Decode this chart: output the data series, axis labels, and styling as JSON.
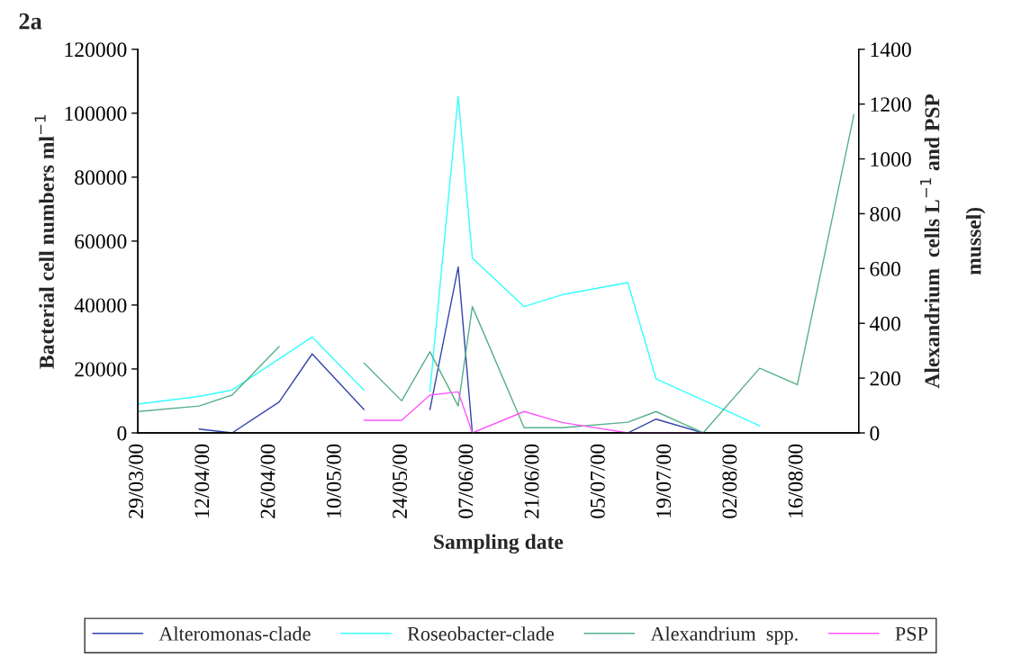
{
  "chart_data": {
    "type": "line",
    "xlabel": "Sampling date",
    "ylabel": "Bacterial cell numbers ml$^{−1}$",
    "y2label": "Alexandrium  cells L$^{−1}$ and PSP\nmussel)",
    "annotations": [
      "2a"
    ],
    "xlim": [
      "2000-03-29",
      "2000-08-29"
    ],
    "xticks": [
      {
        "value": "2000-03-29",
        "label": "29/03/00"
      },
      {
        "value": "2000-04-12",
        "label": "12/04/00"
      },
      {
        "value": "2000-04-26",
        "label": "26/04/00"
      },
      {
        "value": "2000-05-10",
        "label": "10/05/00"
      },
      {
        "value": "2000-05-24",
        "label": "24/05/00"
      },
      {
        "value": "2000-06-07",
        "label": "07/06/00"
      },
      {
        "value": "2000-06-21",
        "label": "21/06/00"
      },
      {
        "value": "2000-07-05",
        "label": "05/07/00"
      },
      {
        "value": "2000-07-19",
        "label": "19/07/00"
      },
      {
        "value": "2000-08-02",
        "label": "02/08/00"
      },
      {
        "value": "2000-08-16",
        "label": "16/08/00"
      }
    ],
    "ylim": [
      0,
      120000
    ],
    "yticks": [
      0,
      20000,
      40000,
      60000,
      80000,
      100000,
      120000
    ],
    "y2lim": [
      0,
      1400
    ],
    "y2ticks": [
      0,
      200,
      400,
      600,
      800,
      1000,
      1200,
      1400
    ],
    "grid": false,
    "legend": "bottom",
    "marker": "none",
    "line_style": "solid",
    "series": [
      {
        "name": "Alteromonas-clade",
        "color": "#3344aa",
        "x": [
          "2000-04-11",
          "2000-04-18",
          "2000-04-28",
          "2000-05-05",
          "2000-05-16",
          "2000-05-24",
          "2000-05-30",
          "2000-06-05",
          "2000-06-08",
          "2000-06-19",
          "2000-06-27",
          "2000-07-11",
          "2000-07-17",
          "2000-07-27",
          "2000-08-08"
        ],
        "values": [
          1200,
          0,
          9700,
          24700,
          7300,
          null,
          7300,
          51900,
          0,
          0,
          0,
          0,
          4300,
          0,
          0
        ]
      },
      {
        "name": "Roseobacter-clade",
        "color": "#33ffff",
        "x": [
          "2000-03-29",
          "2000-04-11",
          "2000-04-18",
          "2000-05-05",
          "2000-05-16",
          "2000-05-24",
          "2000-05-30",
          "2000-06-05",
          "2000-06-08",
          "2000-06-19",
          "2000-06-27",
          "2000-07-11",
          "2000-07-17",
          "2000-08-08"
        ],
        "values": [
          9000,
          11400,
          13400,
          30000,
          13400,
          null,
          13000,
          105300,
          54700,
          39500,
          43200,
          47000,
          16900,
          2200
        ]
      },
      {
        "name": "Alexandrium  spp.",
        "color": "#55b088",
        "axis": "y2",
        "x": [
          "2000-03-29",
          "2000-04-11",
          "2000-04-18",
          "2000-04-28",
          "2000-05-05",
          "2000-05-16",
          "2000-05-24",
          "2000-05-30",
          "2000-06-05",
          "2000-06-08",
          "2000-06-19",
          "2000-06-27",
          "2000-07-11",
          "2000-07-17",
          "2000-07-27",
          "2000-08-08",
          "2000-08-16",
          "2000-08-28"
        ],
        "values": [
          78,
          98,
          138,
          315,
          null,
          255,
          117,
          296,
          98,
          461,
          19,
          19,
          39,
          78,
          0,
          236,
          176,
          1162
        ]
      },
      {
        "name": "PSP",
        "color": "#ff55ff",
        "axis": "y2",
        "x": [
          "2000-05-16",
          "2000-05-24",
          "2000-05-30",
          "2000-06-05",
          "2000-06-08",
          "2000-06-19",
          "2000-06-27",
          "2000-07-11",
          "2000-07-17",
          "2000-07-27"
        ],
        "values": [
          46,
          46,
          138,
          150,
          0,
          78,
          38,
          0,
          0,
          0
        ]
      }
    ]
  }
}
